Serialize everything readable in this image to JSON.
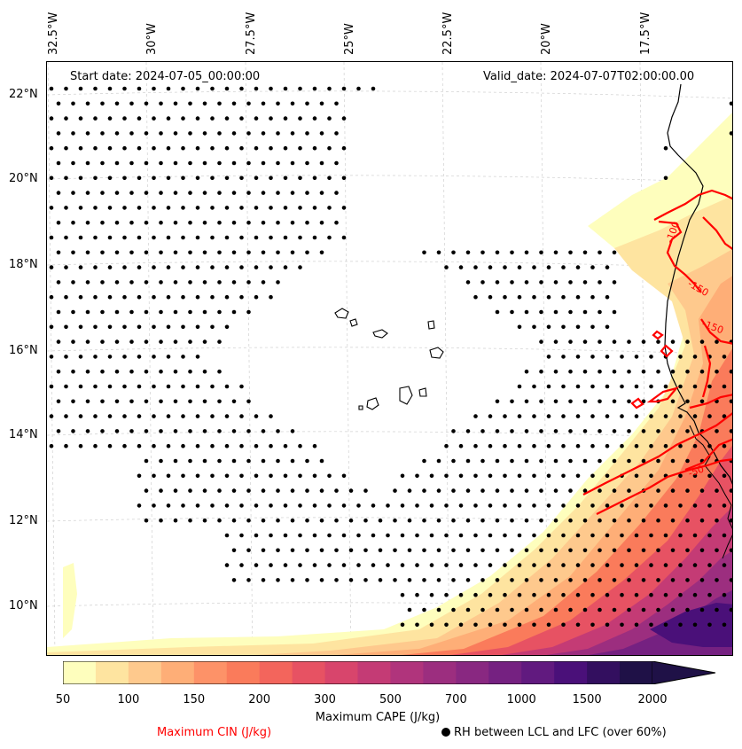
{
  "map": {
    "start_date": "Start date: 2024-07-05_00:00:00",
    "valid_date": "Valid_date: 2024-07-07T02:00:00.00",
    "lon_labels": [
      "32.5°W",
      "30°W",
      "27.5°W",
      "25°W",
      "22.5°W",
      "20°W",
      "17.5°W"
    ],
    "lat_labels": [
      "22°N",
      "20°N",
      "18°N",
      "16°N",
      "14°N",
      "12°N",
      "10°N"
    ],
    "cin_contour_labels": [
      "-100",
      "-150",
      "-150",
      "-50"
    ],
    "grid": true
  },
  "colorbar": {
    "title": "Maximum CAPE (J/kg)",
    "ticks": [
      "50",
      "100",
      "150",
      "200",
      "300",
      "500",
      "700",
      "1000",
      "1500",
      "2000"
    ],
    "colors": [
      "#fefebd",
      "#fee4a0",
      "#fec98d",
      "#feae77",
      "#fd9268",
      "#fa7b5b",
      "#f3655c",
      "#e75263",
      "#d8456c",
      "#c43b75",
      "#b0347c",
      "#9c2e7f",
      "#892881",
      "#752181",
      "#611a7f",
      "#4a1079",
      "#330f5f",
      "#1f1147"
    ],
    "extend": "max"
  },
  "legend": {
    "cin_label": "Maximum CIN (J/kg)",
    "cin_color": "#ff0000",
    "rh_label": "RH between LCL and LFC (over 60%)"
  }
}
